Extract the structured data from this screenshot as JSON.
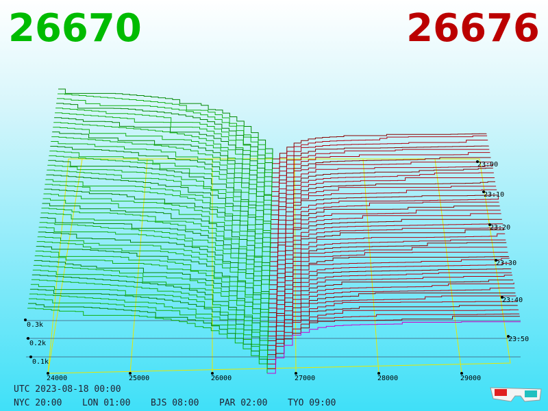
{
  "header": {
    "bid": "26670",
    "ask": "26676"
  },
  "price_axis": {
    "labels": [
      "24000",
      "25000",
      "26000",
      "27000",
      "28000",
      "29000"
    ]
  },
  "volume_axis": {
    "labels": [
      "0.3k",
      "0.2k",
      "0.1k"
    ]
  },
  "time_axis": {
    "labels": [
      "23:00",
      "23:10",
      "23:20",
      "23:30",
      "23:40",
      "23:50"
    ]
  },
  "footer": {
    "utc": "UTC 2023-08-18 00:00",
    "zones": [
      "NYC 20:00",
      "LON 01:00",
      "BJS 08:00",
      "PAR 02:00",
      "TYO 09:00"
    ]
  }
}
